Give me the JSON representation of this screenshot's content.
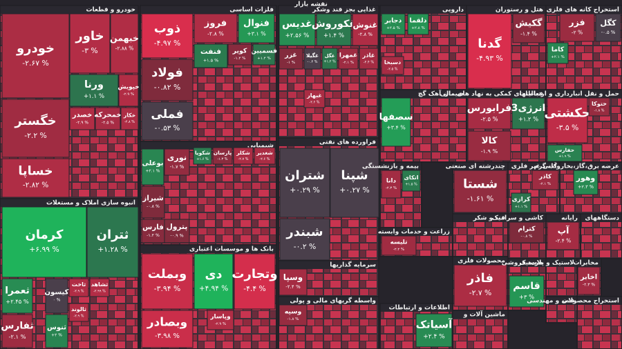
{
  "chart_data": {
    "type": "treemap",
    "title": "نقشه بازار",
    "sectors": [
      {
        "name": "خودرو و قطعات",
        "tiles": [
          {
            "name": "خودرو",
            "value": -2.67,
            "value_label": "-۲.۶۷ %"
          },
          {
            "name": "خگستر",
            "value": -2.2,
            "value_label": "-۲.۲ %"
          },
          {
            "name": "خساپا",
            "value": -2.82,
            "value_label": "-۲.۸۲ %"
          },
          {
            "name": "خاور",
            "value": -3,
            "value_label": "-۳ %"
          },
          {
            "name": "خبهمن",
            "value": -2.88,
            "value_label": "-۲.۸۸ %"
          },
          {
            "name": "ورنا",
            "value": 1.1,
            "value_label": "+۱.۱ %"
          },
          {
            "name": "خپویش",
            "value": -2.9,
            "value_label": "-۲.۹ %"
          },
          {
            "name": "خصدر",
            "value": -2.9,
            "value_label": "-۲.۹ %"
          },
          {
            "name": "خمحرکه",
            "value": -2.5,
            "value_label": "-۲.۵ %"
          },
          {
            "name": "خکار",
            "value": -2.8,
            "value_label": "-۲.۸ %"
          }
        ]
      },
      {
        "name": "انبوه سازی املاک و مستغلات",
        "tiles": [
          {
            "name": "کرمان",
            "value": 6.99,
            "value_label": "+۶.۹۹ %"
          },
          {
            "name": "ثتران",
            "value": 1.28,
            "value_label": "+۱.۲۸ %"
          },
          {
            "name": "ثعمرا",
            "value": 2.45,
            "value_label": "+۲.۴۵ %"
          },
          {
            "name": "کیسون",
            "value": 0,
            "value_label": "۰ %"
          },
          {
            "name": "ثاخت",
            "value": -2.9,
            "value_label": "-۲.۹ %"
          },
          {
            "name": "ثشاهد",
            "value": -2.99,
            "value_label": "-۲.۹۹ %"
          },
          {
            "name": "ثالوند",
            "value": -2.9,
            "value_label": "-۲.۹ %"
          },
          {
            "name": "ثفارس",
            "value": -2.1,
            "value_label": "-۲.۱ %"
          },
          {
            "name": "ثنوس",
            "value": 2,
            "value_label": "+۲ %"
          }
        ]
      },
      {
        "name": "فلزات اساسی",
        "tiles": [
          {
            "name": "ذوب",
            "value": -4.97,
            "value_label": "-۴.۹۷ %"
          },
          {
            "name": "فولاد",
            "value": -0.82,
            "value_label": "-۰.۸۲ %"
          },
          {
            "name": "فملی",
            "value": -0.53,
            "value_label": "-۰.۵۳ %"
          },
          {
            "name": "فروز",
            "value": -2.8,
            "value_label": "-۲.۸ %"
          },
          {
            "name": "فنوال",
            "value": 3.1,
            "value_label": "+۳.۱ %"
          },
          {
            "name": "فنفت",
            "value": 1.5,
            "value_label": "+۱.۵ %"
          },
          {
            "name": "فسمیین",
            "value": 1.2,
            "value_label": "+۱.۲ %"
          },
          {
            "name": "کویر",
            "value": -1.2,
            "value_label": "-۱.۲ %"
          }
        ]
      },
      {
        "name": "شیمیایی",
        "tiles": [
          {
            "name": "بوعلی",
            "value": 2.1,
            "value_label": "+۲.۱ %"
          },
          {
            "name": "نوری",
            "value": -1.7,
            "value_label": "-۱.۷ %"
          },
          {
            "name": "شکویا",
            "value": 1.6,
            "value_label": "+۱.۶ %"
          },
          {
            "name": "پارسان",
            "value": -1.3,
            "value_label": "-۱.۳ %"
          },
          {
            "name": "شکلر",
            "value": -2.7,
            "value_label": "-۲.۷ %"
          },
          {
            "name": "شغدیر",
            "value": -2.6,
            "value_label": "-۲.۶ %"
          },
          {
            "name": "شیراز",
            "value": -0.8,
            "value_label": "-۰.۸ %"
          },
          {
            "name": "فارس",
            "value": -1.2,
            "value_label": "-۱.۲ %"
          },
          {
            "name": "پترول",
            "value": -0.9,
            "value_label": "-۰.۹ %"
          }
        ]
      },
      {
        "name": "بانک ها و موسسات اعتباری",
        "tiles": [
          {
            "name": "وبملت",
            "value": -3.94,
            "value_label": "-۳.۹۴ %"
          },
          {
            "name": "دی",
            "value": 4.94,
            "value_label": "+۴.۹۴ %"
          },
          {
            "name": "وتجارت",
            "value": -4.4,
            "value_label": "-۴.۴ %"
          },
          {
            "name": "وبصادر",
            "value": -3.98,
            "value_label": "-۳.۹۸ %"
          },
          {
            "name": "وپاسار",
            "value": -2.9,
            "value_label": "-۲.۹ %"
          }
        ]
      },
      {
        "name": "غذایی بجز قند وشکر",
        "tiles": [
          {
            "name": "غدیس",
            "value": 2.56,
            "value_label": "+۲.۵۶ %"
          },
          {
            "name": "غکوروش",
            "value": 1.4,
            "value_label": "+۱.۴ %"
          },
          {
            "name": "غنوش",
            "value": -2.8,
            "value_label": "-۲.۸ %"
          },
          {
            "name": "غزر",
            "value": -1,
            "value_label": "-۱ %"
          },
          {
            "name": "غگیلا",
            "value": -0.4,
            "value_label": "-۰.۴ %"
          },
          {
            "name": "غگل",
            "value": 1.2,
            "value_label": "+۱.۲ %"
          },
          {
            "name": "غمهرا",
            "value": -2.1,
            "value_label": "-۲.۱ %"
          },
          {
            "name": "غاذر",
            "value": -2.4,
            "value_label": "-۲.۴ %"
          },
          {
            "name": "غبهار",
            "value": -2.6,
            "value_label": "-۲.۶ %"
          }
        ]
      },
      {
        "name": "فراورده های نفتی",
        "tiles": [
          {
            "name": "شتران",
            "value": 0.29,
            "value_label": "+۰.۲۹ %"
          },
          {
            "name": "شپنا",
            "value": 0.27,
            "value_label": "+۰.۲۷ %"
          },
          {
            "name": "شبندر",
            "value": -0.2,
            "value_label": "-۰.۲ %"
          }
        ]
      },
      {
        "name": "سرمایه گذاریها",
        "tiles": [
          {
            "name": "وسپا",
            "value": -2.4,
            "value_label": "-۲.۴ %"
          }
        ]
      },
      {
        "name": "واسطه گریهای مالی و پولی",
        "tiles": [
          {
            "name": "وسپه",
            "value": -1.8,
            "value_label": "-۱.۸ %"
          }
        ]
      },
      {
        "name": "دارویی",
        "tiles": [
          {
            "name": "دجابر",
            "value": 2.5,
            "value_label": "+۲.۵ %"
          },
          {
            "name": "دلقما",
            "value": 2.8,
            "value_label": "+۲.۸ %"
          },
          {
            "name": "دسبحا",
            "value": -2.5,
            "value_label": "-۲.۵ %"
          }
        ]
      },
      {
        "name": "سیمان آهک گچ",
        "tiles": [
          {
            "name": "سصفها",
            "value": 3.4,
            "value_label": "+۳.۴ %"
          }
        ]
      },
      {
        "name": "هتل و رستوران",
        "tiles": [
          {
            "name": "گدنا",
            "value": -4.93,
            "value_label": "-۴.۹۳ %"
          },
          {
            "name": "گکیش",
            "value": -1.4,
            "value_label": "-۱.۴ %"
          }
        ]
      },
      {
        "name": "فعالیتهای کمکی به نهاد های مالی",
        "tiles": [
          {
            "name": "فرابورس",
            "value": -2.5,
            "value_label": "-۲.۵ %"
          },
          {
            "name": "انرژی3",
            "value": 1.2,
            "value_label": "+۱.۲ %"
          },
          {
            "name": "کالا",
            "value": -1.9,
            "value_label": "-۱.۹ %"
          }
        ]
      },
      {
        "name": "بیمه و بازنشستگی",
        "tiles": [
          {
            "name": "دانا",
            "value": -2.3,
            "value_label": "-۲.۳ %"
          },
          {
            "name": "اتکای",
            "value": 1.5,
            "value_label": "+۱.۵ %"
          }
        ]
      },
      {
        "name": "چندرشته ای صنعتی",
        "tiles": [
          {
            "name": "شستا",
            "value": -1.61,
            "value_label": "-۱.۶۱ %"
          }
        ]
      },
      {
        "name": "کانی غیر فلزی",
        "tiles": [
          {
            "name": "کاذر",
            "value": -2.1,
            "value_label": "-۲.۱ %"
          },
          {
            "name": "کرازی",
            "value": 1.1,
            "value_label": "+۱.۱ %"
          }
        ]
      },
      {
        "name": "عرضه برق،گاز،بخاروآب گرم",
        "tiles": [
          {
            "name": "وهور",
            "value": 2.3,
            "value_label": "+۲.۳ %"
          }
        ]
      },
      {
        "name": "استخراج کانه های فلزی",
        "tiles": [
          {
            "name": "فزر",
            "value": -2,
            "value_label": "-۲ %"
          },
          {
            "name": "کگل",
            "value": -0.5,
            "value_label": "-۰.۵ %"
          },
          {
            "name": "کاما",
            "value": 2.1,
            "value_label": "+۲.۱ %"
          }
        ]
      },
      {
        "name": "حمل و نقل انبارداری و ارتباطات",
        "tiles": [
          {
            "name": "حکشتی",
            "value": -3.5,
            "value_label": "-۳.۵ %"
          },
          {
            "name": "حتوکا",
            "value": -1.8,
            "value_label": "-۱.۸ %"
          },
          {
            "name": "حفارس",
            "value": 1.9,
            "value_label": "+۱.۹ %"
          }
        ]
      },
      {
        "name": "زراعت و خدمات وابسته",
        "tiles": [
          {
            "name": "تلیسه",
            "value": -2.2,
            "value_label": "-۲.۲ %"
          }
        ]
      },
      {
        "name": "قند و شکر",
        "tiles": []
      },
      {
        "name": "محصولات فلزی",
        "tiles": [
          {
            "name": "فاذر",
            "value": -2.7,
            "value_label": "-۲.۷ %"
          }
        ]
      },
      {
        "name": "اطلاعات و ارتباطات",
        "tiles": [
          {
            "name": "آسیاتک",
            "value": 2.4,
            "value_label": "+۲.۴ %"
          }
        ]
      },
      {
        "name": "خرده فروشی",
        "tiles": [
          {
            "name": "قاسم",
            "value": 3,
            "value_label": "+۳ %"
          }
        ]
      },
      {
        "name": "کاشی و سرامیک",
        "tiles": [
          {
            "name": "کترام",
            "value": -0.8,
            "value_label": "-۰.۸ %"
          }
        ]
      },
      {
        "name": "رایانه",
        "tiles": [
          {
            "name": "آپ",
            "value": -2.4,
            "value_label": "-۲.۴ %"
          }
        ]
      },
      {
        "name": "دستگاههای",
        "tiles": []
      },
      {
        "name": "لاستیک و پلاستیک",
        "tiles": []
      },
      {
        "name": "مخابرات",
        "tiles": [
          {
            "name": "اخابر",
            "value": -2.3,
            "value_label": "-۲.۳ %"
          }
        ]
      },
      {
        "name": "ماشین آلات و",
        "tiles": []
      },
      {
        "name": "فنی و مهندسی",
        "tiles": []
      },
      {
        "name": "استخراج محصولات",
        "tiles": []
      }
    ]
  }
}
